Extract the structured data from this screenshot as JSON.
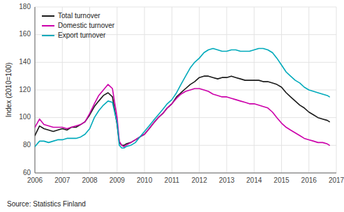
{
  "chart_data": {
    "type": "line",
    "ylabel": "Index (2010=100)",
    "source": "Source: Statistics Finland",
    "xlim": [
      2006.0,
      2017.0
    ],
    "xticks": [
      2006,
      2007,
      2008,
      2009,
      2010,
      2011,
      2012,
      2013,
      2014,
      2015,
      2016,
      2017
    ],
    "ylim": [
      60,
      180
    ],
    "yticks": [
      60,
      80,
      100,
      120,
      140,
      160,
      180
    ],
    "grid": true,
    "legend": "upper left",
    "x": [
      2006.0,
      2006.17,
      2006.33,
      2006.5,
      2006.67,
      2006.83,
      2007.0,
      2007.17,
      2007.33,
      2007.5,
      2007.67,
      2007.83,
      2008.0,
      2008.17,
      2008.33,
      2008.5,
      2008.67,
      2008.83,
      2009.0,
      2009.08,
      2009.17,
      2009.25,
      2009.33,
      2009.5,
      2009.67,
      2009.83,
      2010.0,
      2010.17,
      2010.33,
      2010.5,
      2010.67,
      2010.83,
      2011.0,
      2011.17,
      2011.33,
      2011.5,
      2011.67,
      2011.83,
      2012.0,
      2012.17,
      2012.33,
      2012.5,
      2012.67,
      2012.83,
      2013.0,
      2013.17,
      2013.33,
      2013.5,
      2013.67,
      2013.83,
      2014.0,
      2014.17,
      2014.33,
      2014.5,
      2014.67,
      2014.83,
      2015.0,
      2015.17,
      2015.33,
      2015.5,
      2015.67,
      2015.83,
      2016.0,
      2016.17,
      2016.33,
      2016.5,
      2016.67,
      2016.75
    ],
    "series": [
      {
        "name": "Total turnover",
        "color": "#1a1a1a",
        "values": [
          87,
          94,
          92,
          91,
          90,
          91,
          92,
          91,
          93,
          93,
          95,
          97,
          102,
          108,
          112,
          116,
          118,
          115,
          95,
          82,
          80,
          80,
          81,
          82,
          84,
          86,
          88,
          92,
          96,
          100,
          103,
          107,
          110,
          115,
          118,
          121,
          124,
          126,
          129,
          130,
          130,
          129,
          128,
          129,
          129,
          130,
          129,
          128,
          127,
          127,
          127,
          127,
          126,
          126,
          125,
          124,
          122,
          118,
          115,
          112,
          109,
          107,
          104,
          102,
          100,
          99,
          98,
          97
        ]
      },
      {
        "name": "Domestic turnover",
        "color": "#cc00aa",
        "values": [
          93,
          99,
          95,
          94,
          93,
          93,
          93,
          92,
          93,
          94,
          95,
          97,
          103,
          110,
          116,
          120,
          124,
          121,
          100,
          83,
          80,
          79,
          80,
          82,
          84,
          86,
          88,
          92,
          96,
          100,
          103,
          107,
          110,
          114,
          117,
          119,
          120,
          121,
          121,
          120,
          119,
          117,
          116,
          115,
          115,
          114,
          113,
          112,
          111,
          110,
          110,
          109,
          108,
          107,
          104,
          100,
          96,
          93,
          91,
          89,
          87,
          85,
          84,
          83,
          82,
          82,
          81,
          80
        ]
      },
      {
        "name": "Export turnover",
        "color": "#00aabb",
        "values": [
          79,
          83,
          83,
          82,
          83,
          84,
          84,
          85,
          85,
          85,
          86,
          88,
          92,
          100,
          105,
          109,
          112,
          111,
          96,
          80,
          78,
          78,
          79,
          80,
          82,
          86,
          90,
          94,
          98,
          102,
          106,
          110,
          113,
          118,
          124,
          130,
          136,
          140,
          143,
          147,
          149,
          150,
          149,
          148,
          148,
          149,
          149,
          148,
          148,
          148,
          149,
          150,
          150,
          149,
          147,
          143,
          138,
          133,
          130,
          127,
          125,
          122,
          120,
          119,
          118,
          117,
          116,
          115
        ]
      }
    ]
  }
}
